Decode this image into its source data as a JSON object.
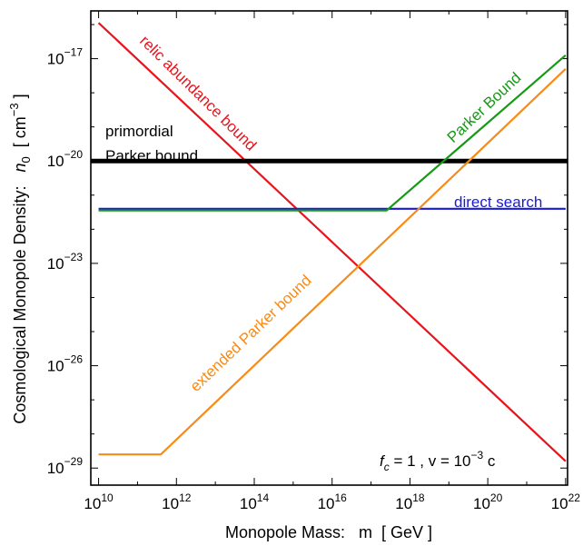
{
  "chart_data": {
    "type": "line",
    "xlabel": "Monopole Mass:   m  [ GeV ]",
    "ylabel_main": "Cosmological Monopole Density:   ",
    "ylabel_sym": "n",
    "ylabel_sub": "0",
    "ylabel_unit_open": "  [ cm",
    "ylabel_unit_exp": "−3",
    "ylabel_unit_close": " ]",
    "xscale": "log",
    "yscale": "log",
    "xlim_log10": [
      9.8,
      22.05
    ],
    "ylim_log10": [
      -29.5,
      -15.6
    ],
    "x_ticks_log10": [
      10,
      12,
      14,
      16,
      18,
      20,
      22
    ],
    "y_ticks_log10": [
      -29,
      -26,
      -23,
      -20,
      -17
    ],
    "tick_base": "10",
    "grid": false,
    "annotation": {
      "f": "f",
      "f_sub": "c",
      "f_eq": " = 1   ,  v = 10",
      "v_exp": "−3",
      "v_unit": " c"
    },
    "series": [
      {
        "name": "relic abundance bound",
        "color": "#e8141c",
        "x_log10": [
          10,
          22
        ],
        "y_log10": [
          -15.95,
          -28.8
        ]
      },
      {
        "name": "primordial Parker bound",
        "name_lines": [
          "primordial",
          "Parker bound"
        ],
        "color": "#000000",
        "x_log10": [
          9.8,
          22.05
        ],
        "y_log10": [
          -20,
          -20
        ]
      },
      {
        "name": "direct search",
        "color": "#1a1adc",
        "x_log10": [
          10,
          22
        ],
        "y_log10": [
          -21.4,
          -21.4
        ]
      },
      {
        "name": "Parker Bound",
        "color": "#169a16",
        "x_log10": [
          10,
          17.4,
          22
        ],
        "y_log10": [
          -21.45,
          -21.45,
          -16.9
        ]
      },
      {
        "name": "extended Parker bound",
        "color": "#f78b17",
        "x_log10": [
          10,
          11.6,
          22
        ],
        "y_log10": [
          -28.6,
          -28.6,
          -17.3
        ]
      }
    ]
  }
}
